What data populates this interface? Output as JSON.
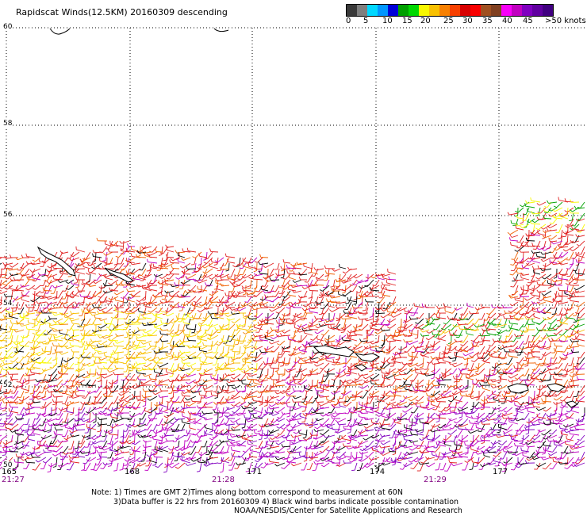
{
  "title": "Rapidscat Winds(12.5KM) 20160309 descending",
  "colorbar": {
    "colors": [
      "#3a3a3a",
      "#7f7f7f",
      "#00d8ff",
      "#0096ff",
      "#0000d8",
      "#00a000",
      "#00d800",
      "#f8f800",
      "#f8c000",
      "#f88000",
      "#f84000",
      "#d80000",
      "#f80000",
      "#a05020",
      "#804020",
      "#f800f8",
      "#c000c0",
      "#8000c0",
      "#6000a0",
      "#400080"
    ],
    "labels": [
      "0",
      "5",
      "10",
      "15",
      "20",
      "25",
      "30",
      "35",
      "40",
      "45",
      ">50 knots"
    ]
  },
  "lat_labels": [
    "60",
    "58",
    "56",
    "54",
    "52",
    "50"
  ],
  "lon_labels": [
    "165",
    "168",
    "171",
    "174",
    "177"
  ],
  "time_labels": [
    "21:27",
    "21:28",
    "21:29"
  ],
  "note": {
    "line1": "Note: 1) Times are GMT 2)Times along bottom correspond to measurement at 60N",
    "line2": "3)Data buffer is 22 hrs from 20160309 4) Black wind barbs indicate possible contamination",
    "line3": "NOAA/NESDIS/Center for Satellite Applications and Research"
  }
}
